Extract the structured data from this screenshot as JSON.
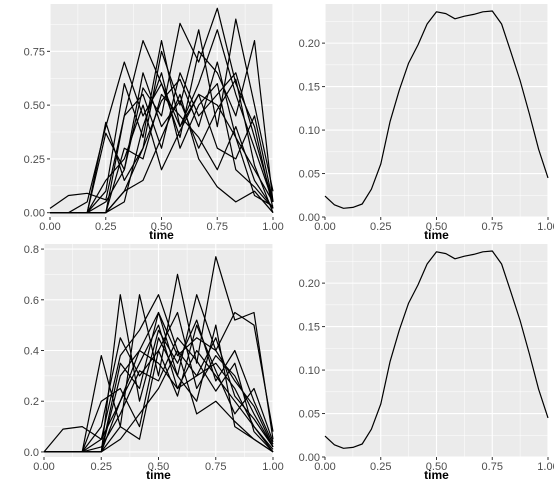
{
  "chart_data": [
    {
      "type": "line",
      "xlabel": "time",
      "ylabel": "",
      "xlim": [
        0,
        1
      ],
      "ylim": [
        -0.02,
        0.97
      ],
      "x_ticks": [
        0,
        0.25,
        0.5,
        0.75,
        1
      ],
      "x_tick_labels": [
        "0.00",
        "0.25",
        "0.50",
        "0.75",
        "1.00"
      ],
      "y_ticks": [
        0,
        0.25,
        0.5,
        0.75
      ],
      "y_tick_labels": [
        "0.00",
        "0.25",
        "0.50",
        "0.75"
      ],
      "grid": true,
      "x": [
        0,
        0.083,
        0.167,
        0.25,
        0.333,
        0.417,
        0.5,
        0.583,
        0.667,
        0.75,
        0.833,
        0.917,
        1
      ],
      "series": [
        {
          "values": [
            0.02,
            0.08,
            0.09,
            0.06,
            0.45,
            0.8,
            0.6,
            0.4,
            0.55,
            0.5,
            0.35,
            0.2,
            0.05
          ]
        },
        {
          "values": [
            0,
            0,
            0,
            0.37,
            0.2,
            0.58,
            0.45,
            0.88,
            0.7,
            0.95,
            0.6,
            0.4,
            0.02
          ]
        },
        {
          "values": [
            0,
            0,
            0,
            0,
            0.1,
            0.3,
            0.75,
            0.5,
            0.85,
            0.4,
            0.9,
            0.5,
            0.1
          ]
        },
        {
          "values": [
            0,
            0,
            0.05,
            0.4,
            0.7,
            0.45,
            0.6,
            0.35,
            0.75,
            0.65,
            0.45,
            0.8,
            0.05
          ]
        },
        {
          "values": [
            0,
            0,
            0,
            0,
            0.45,
            0.55,
            0.3,
            0.65,
            0.45,
            0.55,
            0.65,
            0.35,
            0.05
          ]
        },
        {
          "values": [
            0,
            0,
            0,
            0.1,
            0.6,
            0.35,
            0.8,
            0.4,
            0.6,
            0.85,
            0.55,
            0.3,
            0.05
          ]
        },
        {
          "values": [
            0,
            0,
            0,
            0.05,
            0.2,
            0.65,
            0.4,
            0.52,
            0.3,
            0.48,
            0.62,
            0.22,
            0
          ]
        },
        {
          "values": [
            0,
            0,
            0,
            0,
            0.3,
            0.25,
            0.55,
            0.45,
            0.35,
            0.2,
            0.4,
            0.15,
            0.02
          ]
        },
        {
          "values": [
            0,
            0,
            0,
            0.15,
            0.25,
            0.5,
            0.2,
            0.38,
            0.55,
            0.3,
            0.25,
            0.45,
            0.05
          ]
        },
        {
          "values": [
            0,
            0,
            0,
            0,
            0.1,
            0.15,
            0.35,
            0.55,
            0.25,
            0.12,
            0.05,
            0.1,
            0
          ]
        },
        {
          "values": [
            0,
            0,
            0,
            0,
            0.05,
            0.4,
            0.65,
            0.3,
            0.5,
            0.6,
            0.2,
            0.12,
            0.02
          ]
        },
        {
          "values": [
            0,
            0,
            0,
            0.42,
            0.15,
            0.3,
            0.52,
            0.62,
            0.4,
            0.7,
            0.35,
            0.08,
            0.03
          ]
        }
      ]
    },
    {
      "type": "line",
      "xlabel": "time",
      "ylabel": "",
      "xlim": [
        0,
        1
      ],
      "ylim": [
        0,
        0.245
      ],
      "x_ticks": [
        0,
        0.25,
        0.5,
        0.75,
        1
      ],
      "x_tick_labels": [
        "0.00",
        "0.25",
        "0.50",
        "0.75",
        "1.00"
      ],
      "y_ticks": [
        0,
        0.05,
        0.1,
        0.15,
        0.2
      ],
      "y_tick_labels": [
        "0.00",
        "0.05",
        "0.10",
        "0.15",
        "0.20"
      ],
      "grid": true,
      "x": [
        0,
        0.042,
        0.083,
        0.125,
        0.167,
        0.208,
        0.25,
        0.292,
        0.333,
        0.375,
        0.417,
        0.458,
        0.5,
        0.542,
        0.583,
        0.625,
        0.667,
        0.708,
        0.75,
        0.792,
        0.833,
        0.875,
        0.917,
        0.958,
        1
      ],
      "series": [
        {
          "values": [
            0.024,
            0.014,
            0.01,
            0.011,
            0.015,
            0.032,
            0.061,
            0.11,
            0.146,
            0.177,
            0.198,
            0.222,
            0.236,
            0.234,
            0.228,
            0.231,
            0.233,
            0.236,
            0.237,
            0.222,
            0.19,
            0.157,
            0.118,
            0.078,
            0.045
          ]
        }
      ]
    },
    {
      "type": "line",
      "xlabel": "time",
      "ylabel": "",
      "xlim": [
        0,
        1
      ],
      "ylim": [
        -0.02,
        0.82
      ],
      "x_ticks": [
        0,
        0.25,
        0.5,
        0.75,
        1
      ],
      "x_tick_labels": [
        "0.00",
        "0.25",
        "0.50",
        "0.75",
        "1.00"
      ],
      "y_ticks": [
        0,
        0.2,
        0.4,
        0.6,
        0.8
      ],
      "y_tick_labels": [
        "0.0",
        "0.2",
        "0.4",
        "0.6",
        "0.8"
      ],
      "grid": true,
      "x": [
        0,
        0.083,
        0.167,
        0.25,
        0.333,
        0.417,
        0.5,
        0.583,
        0.667,
        0.75,
        0.833,
        0.917,
        1
      ],
      "series": [
        {
          "values": [
            0,
            0.09,
            0.1,
            0.05,
            0.38,
            0.48,
            0.62,
            0.4,
            0.3,
            0.45,
            0.22,
            0.13,
            0.02
          ]
        },
        {
          "values": [
            0,
            0,
            0,
            0.38,
            0.1,
            0.62,
            0.3,
            0.7,
            0.35,
            0.77,
            0.52,
            0.55,
            0.05
          ]
        },
        {
          "values": [
            0,
            0,
            0,
            0,
            0.2,
            0.4,
            0.55,
            0.3,
            0.62,
            0.4,
            0.55,
            0.5,
            0.08
          ]
        },
        {
          "values": [
            0,
            0,
            0,
            0,
            0.62,
            0.2,
            0.48,
            0.35,
            0.52,
            0.28,
            0.4,
            0.2,
            0.03
          ]
        },
        {
          "values": [
            0,
            0,
            0,
            0.1,
            0.45,
            0.3,
            0.4,
            0.55,
            0.25,
            0.38,
            0.3,
            0.15,
            0.02
          ]
        },
        {
          "values": [
            0,
            0,
            0,
            0,
            0.3,
            0.4,
            0.35,
            0.25,
            0.4,
            0.3,
            0.2,
            0.1,
            0
          ]
        },
        {
          "values": [
            0,
            0,
            0,
            0.05,
            0.2,
            0.35,
            0.5,
            0.25,
            0.3,
            0.35,
            0.25,
            0.1,
            0.01
          ]
        },
        {
          "values": [
            0,
            0,
            0,
            0,
            0.05,
            0.15,
            0.25,
            0.4,
            0.15,
            0.2,
            0.12,
            0.05,
            0
          ]
        },
        {
          "values": [
            0,
            0,
            0,
            0,
            0.35,
            0.25,
            0.55,
            0.38,
            0.45,
            0.4,
            0.28,
            0.18,
            0.02
          ]
        },
        {
          "values": [
            0,
            0,
            0,
            0.02,
            0.15,
            0.32,
            0.28,
            0.45,
            0.36,
            0.24,
            0.35,
            0.08,
            0
          ]
        },
        {
          "values": [
            0,
            0,
            0,
            0,
            0.1,
            0.05,
            0.4,
            0.22,
            0.5,
            0.32,
            0.15,
            0.25,
            0.04
          ]
        },
        {
          "values": [
            0,
            0,
            0,
            0.2,
            0.25,
            0.1,
            0.45,
            0.3,
            0.2,
            0.5,
            0.1,
            0.05,
            0
          ]
        }
      ]
    },
    {
      "type": "line",
      "xlabel": "time",
      "ylabel": "",
      "xlim": [
        0,
        1
      ],
      "ylim": [
        0,
        0.245
      ],
      "x_ticks": [
        0,
        0.25,
        0.5,
        0.75,
        1
      ],
      "x_tick_labels": [
        "0.00",
        "0.25",
        "0.50",
        "0.75",
        "1.00"
      ],
      "y_ticks": [
        0,
        0.05,
        0.1,
        0.15,
        0.2
      ],
      "y_tick_labels": [
        "0.00",
        "0.05",
        "0.10",
        "0.15",
        "0.20"
      ],
      "grid": true,
      "x": [
        0,
        0.042,
        0.083,
        0.125,
        0.167,
        0.208,
        0.25,
        0.292,
        0.333,
        0.375,
        0.417,
        0.458,
        0.5,
        0.542,
        0.583,
        0.625,
        0.667,
        0.708,
        0.75,
        0.792,
        0.833,
        0.875,
        0.917,
        0.958,
        1
      ],
      "series": [
        {
          "values": [
            0.024,
            0.014,
            0.01,
            0.011,
            0.015,
            0.032,
            0.061,
            0.11,
            0.146,
            0.177,
            0.198,
            0.222,
            0.236,
            0.234,
            0.228,
            0.231,
            0.233,
            0.236,
            0.237,
            0.222,
            0.19,
            0.157,
            0.118,
            0.078,
            0.045
          ]
        }
      ]
    }
  ]
}
